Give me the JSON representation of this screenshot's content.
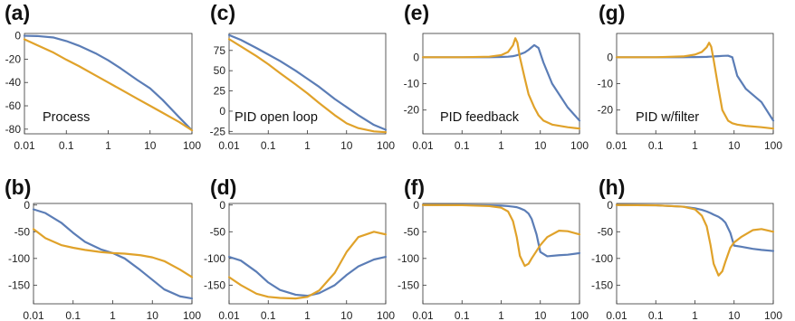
{
  "colors": {
    "blue": "#5b7db6",
    "orange": "#e0a22a"
  },
  "x_ticks": [
    "0.01",
    "0.1",
    "1",
    "10",
    "100"
  ],
  "chart_data": [
    {
      "id": "a",
      "letter": "(a)",
      "type": "line",
      "caption": "Process",
      "xlog": true,
      "xlim": [
        0.01,
        100
      ],
      "ylim": [
        -84,
        2
      ],
      "yticks": [
        0,
        -20,
        -40,
        -60,
        -80
      ],
      "ytick_labels": [
        "0",
        "-20",
        "-40",
        "-60",
        "-80"
      ],
      "x": [
        0.01,
        0.02,
        0.05,
        0.1,
        0.2,
        0.5,
        1,
        2,
        5,
        10,
        20,
        50,
        100
      ],
      "series": [
        {
          "color": "blue",
          "values": [
            0,
            -0.2,
            -1.5,
            -4.5,
            -8.5,
            -15,
            -21,
            -28,
            -38,
            -45,
            -55,
            -70,
            -81
          ]
        },
        {
          "color": "orange",
          "values": [
            -3,
            -8,
            -14.5,
            -20.5,
            -26,
            -34,
            -40,
            -46,
            -54,
            -60,
            -66,
            -74,
            -81
          ]
        }
      ]
    },
    {
      "id": "c",
      "letter": "(c)",
      "type": "line",
      "caption": "PID open loop",
      "xlog": true,
      "xlim": [
        0.01,
        100
      ],
      "ylim": [
        -28,
        96
      ],
      "yticks": [
        75,
        50,
        25,
        0,
        -25
      ],
      "ytick_labels": [
        "75",
        "50",
        "25",
        "0",
        "-25"
      ],
      "x": [
        0.01,
        0.02,
        0.05,
        0.1,
        0.2,
        0.5,
        1,
        2,
        5,
        10,
        20,
        50,
        100
      ],
      "series": [
        {
          "color": "blue",
          "values": [
            94,
            88,
            78,
            70,
            62,
            50,
            40,
            30,
            15,
            5,
            -5,
            -17,
            -23
          ]
        },
        {
          "color": "orange",
          "values": [
            89,
            80,
            68,
            58,
            47,
            33,
            22,
            10,
            -5,
            -15,
            -21,
            -25,
            -26
          ]
        }
      ]
    },
    {
      "id": "e",
      "letter": "(e)",
      "type": "line",
      "caption": "PID feedback",
      "xlog": true,
      "xlim": [
        0.01,
        100
      ],
      "ylim": [
        -29,
        9
      ],
      "yticks": [
        0,
        -10,
        -20
      ],
      "ytick_labels": [
        "0",
        "-10",
        "-20"
      ],
      "x": [
        0.01,
        0.1,
        0.5,
        1,
        1.5,
        2,
        2.3,
        2.6,
        3,
        4,
        5,
        7,
        9,
        12,
        20,
        50,
        100
      ],
      "series": [
        {
          "color": "blue",
          "values": [
            0,
            0,
            0,
            0.1,
            0.2,
            0.4,
            0.6,
            0.8,
            1.1,
            1.8,
            2.8,
            4.6,
            3.5,
            -2,
            -10,
            -19,
            -24
          ]
        },
        {
          "color": "orange",
          "values": [
            0,
            0,
            0.2,
            0.8,
            2.0,
            4.5,
            7.2,
            5.5,
            0,
            -8,
            -14,
            -19,
            -22,
            -24,
            -25.5,
            -26.5,
            -27
          ]
        }
      ]
    },
    {
      "id": "g",
      "letter": "(g)",
      "type": "line",
      "caption": "PID w/filter",
      "xlog": true,
      "xlim": [
        0.01,
        100
      ],
      "ylim": [
        -29,
        9
      ],
      "yticks": [
        0,
        -10,
        -20
      ],
      "ytick_labels": [
        "0",
        "-10",
        "-20"
      ],
      "x": [
        0.01,
        0.1,
        0.5,
        1,
        1.5,
        2,
        2.3,
        2.6,
        3,
        4,
        5,
        7,
        9,
        12,
        20,
        50,
        100
      ],
      "series": [
        {
          "color": "blue",
          "values": [
            0,
            0,
            0,
            0.05,
            0.1,
            0.15,
            0.2,
            0.25,
            0.3,
            0.4,
            0.5,
            0.6,
            0,
            -7,
            -12,
            -17,
            -24
          ]
        },
        {
          "color": "orange",
          "values": [
            0,
            0,
            0.3,
            1.0,
            2.0,
            3.8,
            5.5,
            4.0,
            -1,
            -12,
            -20,
            -24,
            -25,
            -25.5,
            -26,
            -26.5,
            -27
          ]
        }
      ]
    },
    {
      "id": "b",
      "letter": "(b)",
      "type": "line",
      "caption": "",
      "xlog": true,
      "xlim": [
        0.01,
        100
      ],
      "ylim": [
        -185,
        3
      ],
      "yticks": [
        0,
        -50,
        -100,
        -150
      ],
      "ytick_labels": [
        "0",
        "-50",
        "-100",
        "-150"
      ],
      "x": [
        0.01,
        0.02,
        0.05,
        0.1,
        0.2,
        0.5,
        1,
        2,
        5,
        10,
        20,
        50,
        100
      ],
      "series": [
        {
          "color": "blue",
          "values": [
            -8,
            -15,
            -33,
            -52,
            -69,
            -83,
            -90,
            -100,
            -122,
            -140,
            -158,
            -171,
            -175
          ]
        },
        {
          "color": "orange",
          "values": [
            -45,
            -62,
            -75,
            -80,
            -84,
            -88,
            -90,
            -91,
            -94,
            -98,
            -105,
            -121,
            -135
          ]
        }
      ]
    },
    {
      "id": "d",
      "letter": "(d)",
      "type": "line",
      "caption": "",
      "xlog": true,
      "xlim": [
        0.01,
        100
      ],
      "ylim": [
        -185,
        3
      ],
      "yticks": [
        0,
        -50,
        -100,
        -150
      ],
      "ytick_labels": [
        "0",
        "-50",
        "-100",
        "-150"
      ],
      "x": [
        0.01,
        0.02,
        0.05,
        0.1,
        0.2,
        0.5,
        1,
        2,
        5,
        10,
        20,
        50,
        100
      ],
      "series": [
        {
          "color": "blue",
          "values": [
            -97,
            -104,
            -125,
            -145,
            -159,
            -168,
            -170,
            -165,
            -150,
            -131,
            -115,
            -102,
            -97
          ]
        },
        {
          "color": "orange",
          "values": [
            -135,
            -150,
            -166,
            -172,
            -174,
            -175,
            -172,
            -160,
            -127,
            -88,
            -60,
            -50,
            -55
          ]
        }
      ]
    },
    {
      "id": "f",
      "letter": "(f)",
      "type": "line",
      "caption": "",
      "xlog": true,
      "xlim": [
        0.01,
        100
      ],
      "ylim": [
        -185,
        3
      ],
      "yticks": [
        0,
        -50,
        -100,
        -150
      ],
      "ytick_labels": [
        "0",
        "-50",
        "-100",
        "-150"
      ],
      "x": [
        0.01,
        0.1,
        0.5,
        1,
        1.5,
        2,
        2.5,
        3,
        4,
        5,
        6,
        8,
        10,
        15,
        30,
        50,
        100
      ],
      "series": [
        {
          "color": "blue",
          "values": [
            0,
            0,
            -0.5,
            -1,
            -2,
            -3,
            -4,
            -6,
            -10,
            -16,
            -26,
            -55,
            -88,
            -96,
            -94,
            -93,
            -90
          ]
        },
        {
          "color": "orange",
          "values": [
            0,
            -0.3,
            -2,
            -5,
            -12,
            -30,
            -60,
            -95,
            -114,
            -110,
            -100,
            -86,
            -75,
            -60,
            -48,
            -49,
            -55
          ]
        }
      ]
    },
    {
      "id": "h",
      "letter": "(h)",
      "type": "line",
      "caption": "",
      "xlog": true,
      "xlim": [
        0.01,
        100
      ],
      "ylim": [
        -185,
        3
      ],
      "yticks": [
        0,
        -50,
        -100,
        -150
      ],
      "ytick_labels": [
        "0",
        "-50",
        "-100",
        "-150"
      ],
      "x": [
        0.01,
        0.1,
        0.5,
        1,
        1.5,
        2,
        2.5,
        3,
        4,
        5,
        6,
        8,
        10,
        15,
        30,
        50,
        100
      ],
      "series": [
        {
          "color": "blue",
          "values": [
            0,
            -0.5,
            -3,
            -6,
            -9,
            -12,
            -15,
            -18,
            -22,
            -27,
            -33,
            -52,
            -76,
            -78,
            -82,
            -84,
            -86
          ]
        },
        {
          "color": "orange",
          "values": [
            0,
            -0.5,
            -3,
            -8,
            -20,
            -40,
            -75,
            -110,
            -132,
            -124,
            -106,
            -80,
            -70,
            -60,
            -47,
            -45,
            -50
          ]
        }
      ]
    }
  ]
}
